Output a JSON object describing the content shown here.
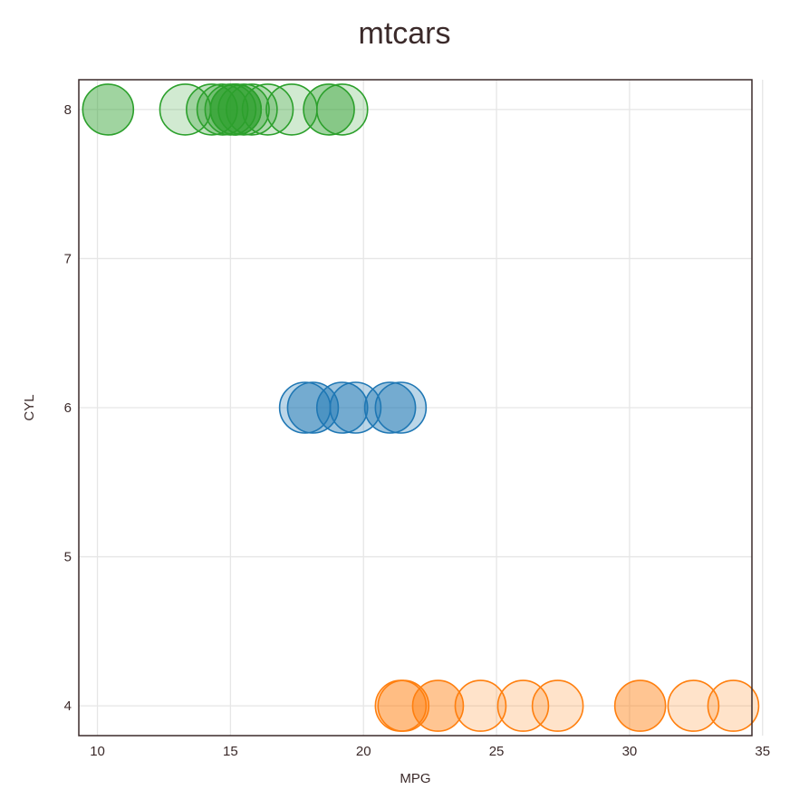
{
  "chart_data": {
    "type": "scatter",
    "title": "mtcars",
    "xlabel": "MPG",
    "ylabel": "CYL",
    "xlim": [
      9.3,
      34.6
    ],
    "ylim": [
      3.8,
      8.2
    ],
    "xticks": [
      10,
      15,
      20,
      25,
      30,
      35
    ],
    "yticks": [
      4,
      5,
      6,
      7,
      8
    ],
    "grid": true,
    "legend": "none",
    "colors": {
      "cyl8": "#2ca02c",
      "cyl6": "#1f77b4",
      "cyl4": "#ff7f0e"
    },
    "series": [
      {
        "color": "#2ca02c",
        "y": 8,
        "x": [
          10.4,
          13.3,
          14.3,
          14.7,
          15.0,
          15.2,
          15.2,
          15.5,
          15.8,
          16.4,
          17.3,
          18.7,
          19.2
        ],
        "shade": [
          0.45,
          0.22,
          0.3,
          0.3,
          0.3,
          0.45,
          0.45,
          0.3,
          0.22,
          0.22,
          0.22,
          0.45,
          0.22
        ]
      },
      {
        "color": "#1f77b4",
        "y": 6,
        "x": [
          17.8,
          18.1,
          19.2,
          19.7,
          21.0,
          21.4
        ],
        "shade": [
          0.3,
          0.45,
          0.45,
          0.3,
          0.45,
          0.3
        ]
      },
      {
        "color": "#ff7f0e",
        "y": 4,
        "x": [
          21.4,
          21.5,
          22.8,
          24.4,
          26.0,
          27.3,
          30.4,
          32.4,
          33.9
        ],
        "shade": [
          0.3,
          0.3,
          0.45,
          0.22,
          0.22,
          0.22,
          0.45,
          0.22,
          0.22
        ]
      }
    ]
  }
}
